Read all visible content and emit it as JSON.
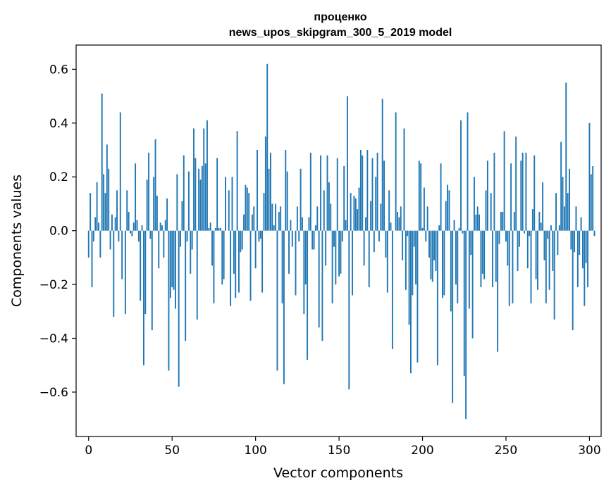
{
  "chart_data": {
    "type": "bar",
    "title": [
      "проценко",
      "news_upos_skipgram_300_5_2019 model"
    ],
    "xlabel": "Vector components",
    "ylabel": "Components values",
    "xlim": [
      -7.5,
      307
    ],
    "ylim": [
      -0.765,
      0.69
    ],
    "xticks": [
      0,
      50,
      100,
      150,
      200,
      250,
      300
    ],
    "yticks": [
      -0.6,
      -0.4,
      -0.2,
      0.0,
      0.2,
      0.4,
      0.6
    ],
    "ytick_labels": [
      "−0.6",
      "−0.4",
      "−0.2",
      "0.0",
      "0.2",
      "0.4",
      "0.6"
    ],
    "grid": false,
    "bar_color": "#1f77b4",
    "values": [
      -0.1,
      0.14,
      -0.21,
      -0.04,
      0.05,
      0.18,
      0.03,
      -0.1,
      0.51,
      0.21,
      0.14,
      0.32,
      0.23,
      -0.07,
      0.06,
      -0.32,
      0.05,
      0.15,
      -0.04,
      0.44,
      -0.18,
      0.0,
      -0.31,
      0.15,
      0.07,
      -0.01,
      -0.02,
      0.03,
      0.25,
      0.04,
      -0.04,
      -0.26,
      0.02,
      -0.5,
      -0.31,
      0.19,
      0.29,
      -0.03,
      -0.37,
      0.2,
      0.34,
      0.13,
      -0.14,
      0.03,
      0.02,
      -0.1,
      0.04,
      0.12,
      -0.52,
      -0.25,
      -0.21,
      -0.22,
      -0.29,
      0.21,
      -0.58,
      -0.06,
      0.11,
      0.28,
      -0.41,
      -0.04,
      0.22,
      -0.16,
      -0.07,
      0.38,
      0.27,
      -0.33,
      0.23,
      0.19,
      0.24,
      0.38,
      0.25,
      0.41,
      0.01,
      0.03,
      -0.13,
      -0.27,
      0.01,
      0.27,
      0.01,
      0.01,
      -0.2,
      -0.18,
      0.2,
      0.0,
      0.15,
      -0.28,
      0.2,
      -0.16,
      -0.25,
      0.37,
      -0.23,
      -0.08,
      -0.07,
      0.06,
      0.17,
      0.16,
      0.14,
      -0.26,
      0.06,
      0.09,
      -0.14,
      0.3,
      -0.04,
      -0.03,
      -0.23,
      0.14,
      0.35,
      0.62,
      0.23,
      0.29,
      0.1,
      0.02,
      0.1,
      -0.52,
      0.07,
      0.09,
      -0.27,
      -0.57,
      0.3,
      0.22,
      -0.16,
      0.04,
      -0.06,
      0.0,
      -0.24,
      0.09,
      -0.04,
      0.23,
      0.05,
      -0.31,
      -0.2,
      -0.48,
      0.05,
      0.29,
      -0.07,
      -0.07,
      0.02,
      0.09,
      -0.36,
      0.28,
      -0.41,
      0.15,
      -0.13,
      0.28,
      0.18,
      0.1,
      -0.27,
      -0.06,
      -0.2,
      0.27,
      -0.17,
      -0.16,
      -0.04,
      0.24,
      0.04,
      0.5,
      -0.59,
      0.14,
      -0.24,
      0.13,
      0.12,
      0.08,
      0.16,
      0.3,
      0.28,
      -0.13,
      0.05,
      0.3,
      -0.21,
      0.11,
      0.27,
      -0.08,
      0.2,
      0.29,
      -0.04,
      0.1,
      0.49,
      0.26,
      -0.1,
      -0.23,
      0.15,
      0.03,
      -0.44,
      0.0,
      0.44,
      0.07,
      0.05,
      0.09,
      -0.11,
      0.38,
      -0.22,
      -0.02,
      -0.35,
      -0.53,
      -0.24,
      -0.06,
      -0.2,
      -0.49,
      0.26,
      0.25,
      0.01,
      0.16,
      -0.04,
      0.09,
      -0.1,
      -0.18,
      -0.19,
      -0.11,
      -0.15,
      -0.5,
      0.02,
      0.25,
      -0.25,
      -0.24,
      0.11,
      0.17,
      0.15,
      -0.3,
      -0.64,
      0.04,
      -0.2,
      -0.27,
      0.01,
      0.41,
      -0.01,
      -0.54,
      -0.7,
      0.44,
      -0.29,
      -0.09,
      -0.4,
      0.2,
      0.06,
      0.09,
      0.06,
      -0.21,
      -0.16,
      -0.18,
      0.15,
      0.26,
      0.0,
      0.14,
      -0.21,
      0.29,
      -0.19,
      -0.45,
      -0.05,
      0.07,
      0.07,
      0.37,
      -0.04,
      -0.13,
      -0.28,
      0.25,
      -0.27,
      0.07,
      0.35,
      -0.15,
      -0.06,
      0.26,
      0.29,
      -0.01,
      0.29,
      -0.14,
      -0.02,
      -0.27,
      0.08,
      0.28,
      -0.18,
      -0.22,
      0.07,
      0.03,
      0.18,
      -0.11,
      -0.27,
      -0.03,
      -0.22,
      0.02,
      -0.15,
      -0.33,
      0.14,
      -0.09,
      0.02,
      0.33,
      0.2,
      0.09,
      0.55,
      0.14,
      0.23,
      -0.07,
      -0.37,
      -0.08,
      0.09,
      -0.21,
      -0.09,
      0.05,
      -0.14,
      -0.28,
      -0.12,
      -0.21,
      0.4,
      0.21,
      0.24,
      -0.02
    ]
  }
}
